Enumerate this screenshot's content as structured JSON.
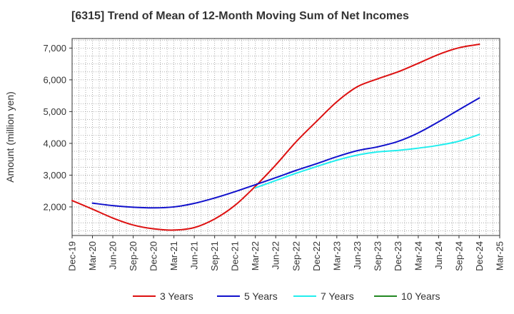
{
  "chart_data": {
    "type": "line",
    "title": "[6315]  Trend of Mean of 12-Month Moving Sum of Net Incomes",
    "xlabel": "",
    "ylabel": "Amount (million yen)",
    "ylim": [
      1100,
      7300
    ],
    "y_ticks": [
      2000,
      3000,
      4000,
      5000,
      6000,
      7000
    ],
    "y_tick_labels": [
      "2,000",
      "3,000",
      "4,000",
      "5,000",
      "6,000",
      "7,000"
    ],
    "x_tick_labels": [
      "Dec-19",
      "Mar-20",
      "Jun-20",
      "Sep-20",
      "Dec-20",
      "Mar-21",
      "Jun-21",
      "Sep-21",
      "Dec-21",
      "Mar-22",
      "Jun-22",
      "Sep-22",
      "Dec-22",
      "Mar-23",
      "Jun-23",
      "Sep-23",
      "Dec-23",
      "Mar-24",
      "Jun-24",
      "Sep-24",
      "Dec-24",
      "Mar-25"
    ],
    "grid": true,
    "legend_position": "bottom",
    "series": [
      {
        "name": "3 Years",
        "color": "#dd1111",
        "x": [
          "Dec-19",
          "Mar-20",
          "Jun-20",
          "Sep-20",
          "Dec-20",
          "Mar-21",
          "Jun-21",
          "Sep-21",
          "Dec-21",
          "Mar-22",
          "Jun-22",
          "Sep-22",
          "Dec-22",
          "Mar-23",
          "Jun-23",
          "Sep-23",
          "Dec-23",
          "Mar-24",
          "Jun-24",
          "Sep-24",
          "Dec-24"
        ],
        "values": [
          2200,
          1930,
          1650,
          1430,
          1310,
          1270,
          1350,
          1620,
          2050,
          2650,
          3320,
          4050,
          4690,
          5310,
          5780,
          6030,
          6250,
          6520,
          6800,
          7010,
          7120
        ]
      },
      {
        "name": "5 Years",
        "color": "#1111cc",
        "x": [
          "Mar-20",
          "Jun-20",
          "Sep-20",
          "Dec-20",
          "Mar-21",
          "Jun-21",
          "Sep-21",
          "Dec-21",
          "Mar-22",
          "Jun-22",
          "Sep-22",
          "Dec-22",
          "Mar-23",
          "Jun-23",
          "Sep-23",
          "Dec-23",
          "Mar-24",
          "Jun-24",
          "Sep-24",
          "Dec-24"
        ],
        "values": [
          2120,
          2040,
          1990,
          1970,
          2000,
          2110,
          2280,
          2480,
          2700,
          2920,
          3150,
          3360,
          3580,
          3770,
          3890,
          4060,
          4330,
          4680,
          5060,
          5430
        ]
      },
      {
        "name": "7 Years",
        "color": "#22eeee",
        "x": [
          "Mar-22",
          "Jun-22",
          "Sep-22",
          "Dec-22",
          "Mar-23",
          "Jun-23",
          "Sep-23",
          "Dec-23",
          "Mar-24",
          "Jun-24",
          "Sep-24",
          "Dec-24"
        ],
        "values": [
          2600,
          2830,
          3060,
          3270,
          3470,
          3630,
          3730,
          3780,
          3850,
          3940,
          4070,
          4280
        ]
      },
      {
        "name": "10 Years",
        "color": "#228822",
        "x": [],
        "values": []
      }
    ]
  }
}
